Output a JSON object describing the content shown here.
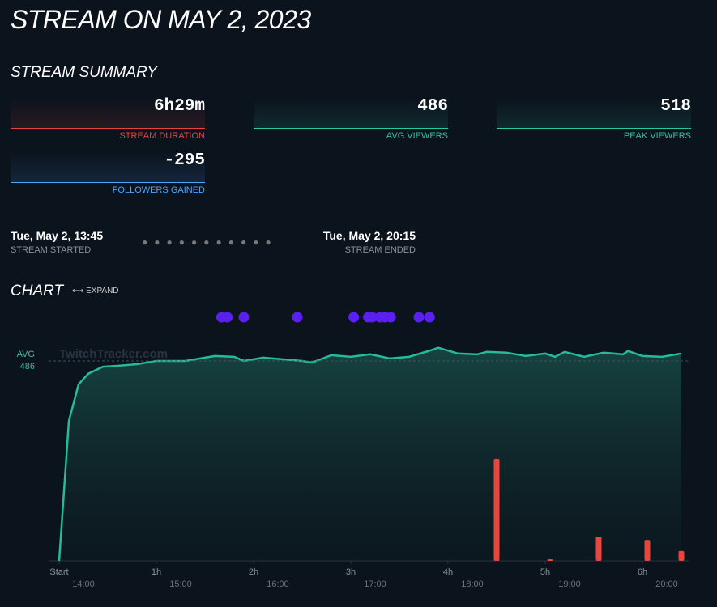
{
  "header": {
    "title": "STREAM ON MAY 2, 2023"
  },
  "summary": {
    "heading": "STREAM SUMMARY",
    "stats": [
      {
        "value": "6h29m",
        "label": "STREAM DURATION",
        "color": "#e8453c"
      },
      {
        "value": "486",
        "label": "AVG VIEWERS",
        "color": "#2ec4a0"
      },
      {
        "value": "518",
        "label": "PEAK VIEWERS",
        "color": "#2ec4a0"
      },
      {
        "value": "-295",
        "label": "FOLLOWERS GAINED",
        "color": "#4da6ff"
      }
    ]
  },
  "timeline": {
    "start": {
      "time": "Tue, May 2, 13:45",
      "label": "STREAM STARTED"
    },
    "end": {
      "time": "Tue, May 2, 20:15",
      "label": "STREAM ENDED"
    }
  },
  "chart_section": {
    "heading": "CHART",
    "expand": "EXPAND"
  },
  "chart_data": {
    "type": "line",
    "watermark": "TwitchTracker.com",
    "avg_label": "AVG",
    "avg": 486,
    "xlim": [
      0,
      6.5
    ],
    "ylim": [
      0,
      600
    ],
    "xticks": [
      {
        "value": 0,
        "label": "Start"
      },
      {
        "value": 1,
        "label": "1h"
      },
      {
        "value": 2,
        "label": "2h"
      },
      {
        "value": 3,
        "label": "3h"
      },
      {
        "value": 4,
        "label": "4h"
      },
      {
        "value": 5,
        "label": "5h"
      },
      {
        "value": 6,
        "label": "6h"
      }
    ],
    "xticks2": [
      {
        "value": 0.25,
        "label": "14:00"
      },
      {
        "value": 1.25,
        "label": "15:00"
      },
      {
        "value": 2.25,
        "label": "16:00"
      },
      {
        "value": 3.25,
        "label": "17:00"
      },
      {
        "value": 4.25,
        "label": "18:00"
      },
      {
        "value": 5.25,
        "label": "19:00"
      },
      {
        "value": 6.25,
        "label": "20:00"
      }
    ],
    "series": [
      {
        "color": "#26b99a",
        "x": [
          0,
          0.1,
          0.2,
          0.3,
          0.45,
          0.6,
          0.8,
          1.0,
          1.3,
          1.6,
          1.8,
          1.9,
          2.1,
          2.5,
          2.6,
          2.8,
          3.0,
          3.2,
          3.4,
          3.6,
          3.8,
          3.9,
          4.1,
          4.3,
          4.4,
          4.6,
          4.8,
          5.0,
          5.1,
          5.2,
          5.4,
          5.6,
          5.8,
          5.85,
          6.0,
          6.2,
          6.4
        ],
        "values": [
          0,
          340,
          429,
          455,
          472,
          474,
          478,
          486,
          486,
          498,
          496,
          486,
          494,
          486,
          482,
          500,
          496,
          502,
          492,
          496,
          510,
          518,
          504,
          502,
          508,
          506,
          498,
          504,
          496,
          508,
          496,
          506,
          502,
          510,
          498,
          496,
          504
        ]
      },
      {
        "type": "bar",
        "color": "#e8453c",
        "x": [
          4.5,
          5.05,
          5.55,
          6.05,
          6.4
        ],
        "values": [
          248,
          4,
          59,
          51,
          24
        ]
      }
    ],
    "events": {
      "color": "#5b1ff0",
      "x": [
        1.67,
        1.73,
        1.9,
        2.45,
        3.03,
        3.18,
        3.22,
        3.3,
        3.35,
        3.41,
        3.7,
        3.81
      ]
    }
  }
}
